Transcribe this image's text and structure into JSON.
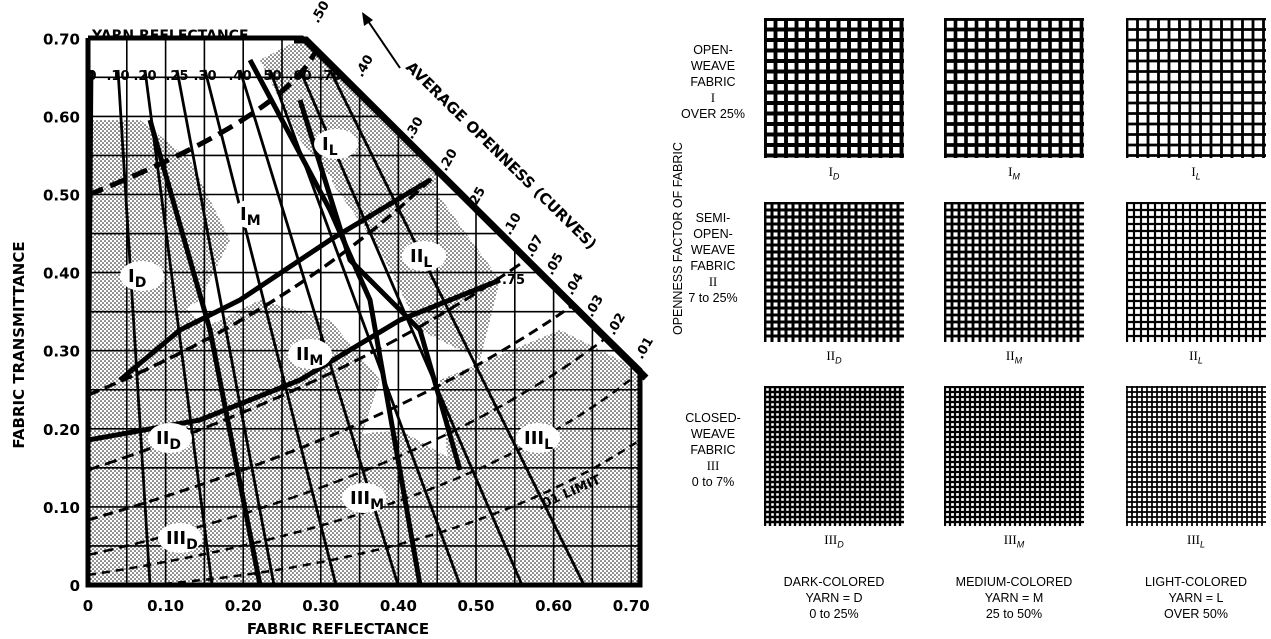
{
  "chart": {
    "x_label": "FABRIC REFLECTANCE",
    "y_label": "FABRIC TRANSMITTANCE",
    "x_ticks": [
      "0",
      "0.10",
      "0.20",
      "0.30",
      "0.40",
      "0.50",
      "0.60",
      "0.70"
    ],
    "y_ticks": [
      "0",
      "0.10",
      "0.20",
      "0.30",
      "0.40",
      "0.50",
      "0.60",
      "0.70"
    ],
    "yarn_title": "YARN REFLECTANCE",
    "yarn_ticks": [
      "0",
      ".10",
      ".20",
      ".25",
      ".30",
      ".40",
      ".50",
      ".60",
      ".70"
    ],
    "openness_title": "AVERAGE OPENNESS (CURVES)",
    "openness_ticks": [
      ".50",
      ".40",
      ".30",
      ".20",
      ".25",
      ".10",
      ".07",
      ".05",
      ".04",
      ".03",
      ".02",
      ".01"
    ],
    "inner_tick": ".75",
    "limit_label": ".01 LIMIT",
    "zones": [
      {
        "roman": "I",
        "sub": "L"
      },
      {
        "roman": "I",
        "sub": "M"
      },
      {
        "roman": "I",
        "sub": "D"
      },
      {
        "roman": "II",
        "sub": "L"
      },
      {
        "roman": "II",
        "sub": "M"
      },
      {
        "roman": "II",
        "sub": "D"
      },
      {
        "roman": "III",
        "sub": "L"
      },
      {
        "roman": "III",
        "sub": "M"
      },
      {
        "roman": "III",
        "sub": "D"
      }
    ]
  },
  "legend": {
    "side_label": "OPENNESS FACTOR OF FABRIC",
    "rows": [
      {
        "lines": [
          "OPEN-",
          "WEAVE",
          "FABRIC"
        ],
        "roman": "I",
        "range": "OVER 25%",
        "spacing": 10.5,
        "thickness": 2.6
      },
      {
        "lines": [
          "SEMI-",
          "OPEN-",
          "WEAVE",
          "FABRIC"
        ],
        "roman": "II",
        "range": "7 to 25%",
        "spacing": 7,
        "thickness": 2.0
      },
      {
        "lines": [
          "CLOSED-",
          "WEAVE",
          "FABRIC"
        ],
        "roman": "III",
        "range": "0 to 7%",
        "spacing": 5,
        "thickness": 1.6
      }
    ],
    "columns": [
      {
        "sub": "D",
        "line1": "DARK-COLORED",
        "line2": "YARN = D",
        "range": "0 to 25%",
        "weight": 1.0
      },
      {
        "sub": "M",
        "line1": "MEDIUM-COLORED",
        "line2": "YARN = M",
        "range": "25 to 50%",
        "weight": 0.65
      },
      {
        "sub": "L",
        "line1": "LIGHT-COLORED",
        "line2": "YARN = L",
        "range": "OVER 50%",
        "weight": 0.32
      }
    ]
  }
}
